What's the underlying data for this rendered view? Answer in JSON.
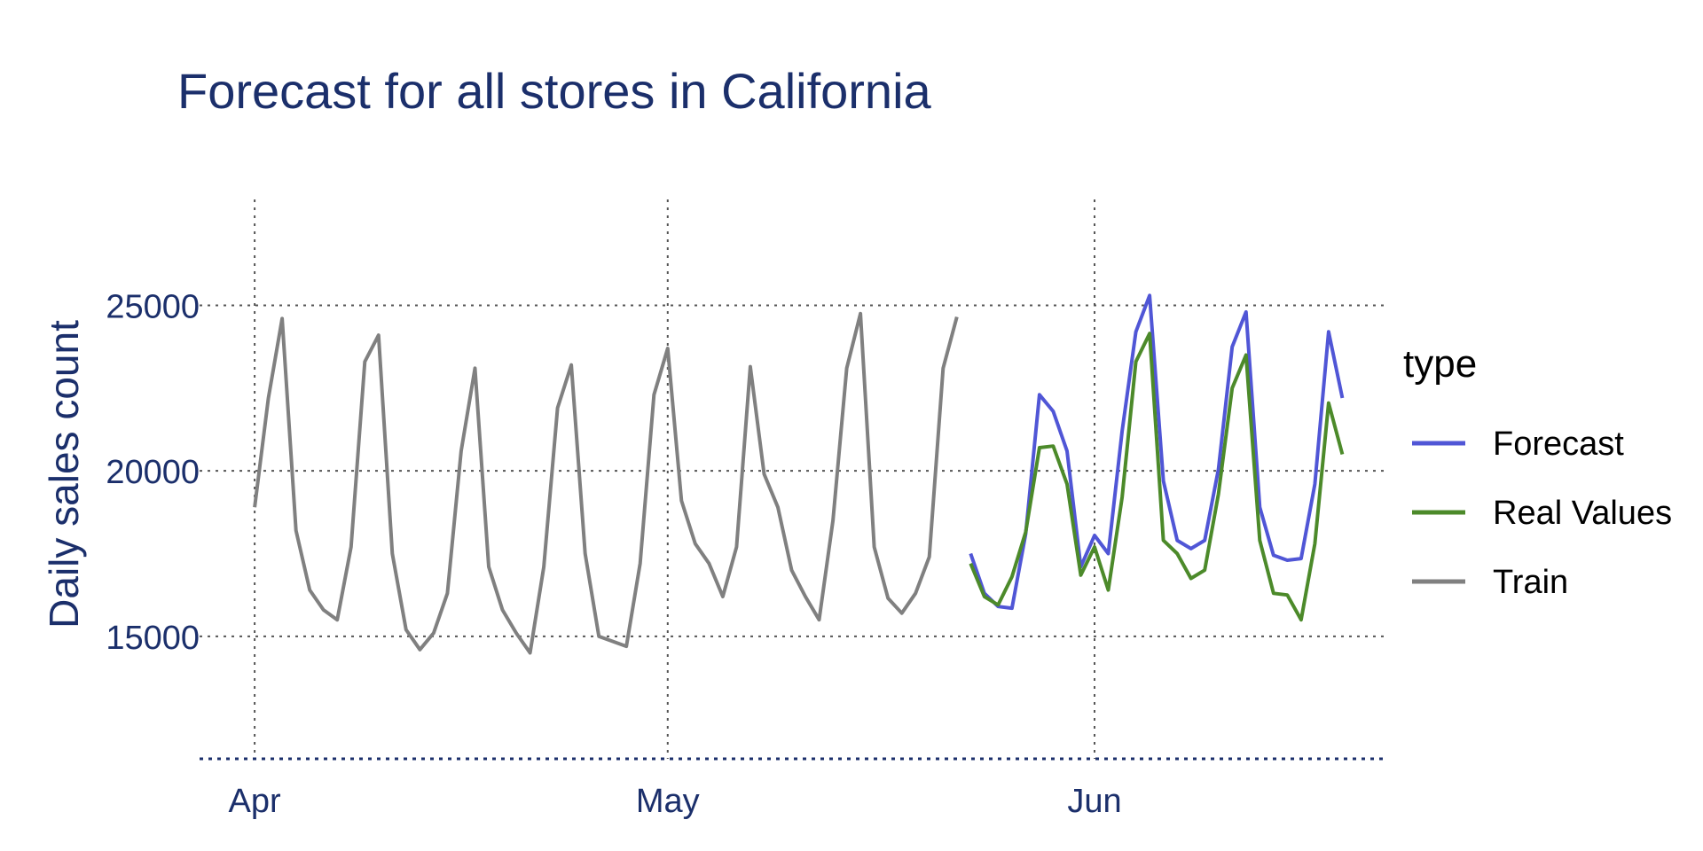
{
  "chart_data": {
    "type": "line",
    "title": "Forecast for all stores in California",
    "xlabel": "",
    "ylabel": "Daily sales count",
    "x_ticks": [
      {
        "label": "Apr",
        "date": "2016-04-01"
      },
      {
        "label": "May",
        "date": "2016-05-01"
      },
      {
        "label": "Jun",
        "date": "2016-06-01"
      }
    ],
    "y_ticks": [
      15000,
      20000,
      25000
    ],
    "xlim": [
      "2016-03-28",
      "2016-06-22"
    ],
    "ylim": [
      11300,
      28200
    ],
    "grid": true,
    "legend": {
      "title": "type",
      "position": "right"
    },
    "series": [
      {
        "name": "Train",
        "color": "#808080",
        "x_start": "2016-04-01",
        "values": [
          18900,
          22200,
          24600,
          18200,
          16400,
          15800,
          15500,
          17700,
          23300,
          24100,
          17500,
          15200,
          14600,
          15100,
          16300,
          20600,
          23100,
          17100,
          15800,
          15100,
          14500,
          17100,
          21900,
          23200,
          17500,
          15000,
          14850,
          14700,
          17200,
          22300,
          23700,
          19100,
          17800,
          17200,
          16200,
          17700,
          23150,
          19900,
          18900,
          17000,
          16200,
          15500,
          18500,
          23100,
          24750,
          17700,
          16150,
          15700,
          16300,
          17400,
          23100,
          24650
        ]
      },
      {
        "name": "Forecast",
        "color": "#5056d6",
        "x_start": "2016-05-23",
        "values": [
          17500,
          16300,
          15900,
          15850,
          18100,
          22300,
          21800,
          20600,
          17100,
          18050,
          17500,
          21200,
          24200,
          25300,
          19700,
          17900,
          17650,
          17900,
          20050,
          23750,
          24800,
          18900,
          17450,
          17300,
          17350,
          19600,
          24200,
          22200
        ]
      },
      {
        "name": "Real Values",
        "color": "#4c8a2a",
        "x_start": "2016-05-23",
        "values": [
          17200,
          16200,
          15950,
          16800,
          18150,
          20700,
          20750,
          19600,
          16850,
          17700,
          16400,
          19200,
          23300,
          24150,
          17900,
          17500,
          16750,
          17000,
          19300,
          22500,
          23500,
          17900,
          16300,
          16250,
          15500,
          17800,
          22050,
          20500
        ]
      }
    ]
  }
}
